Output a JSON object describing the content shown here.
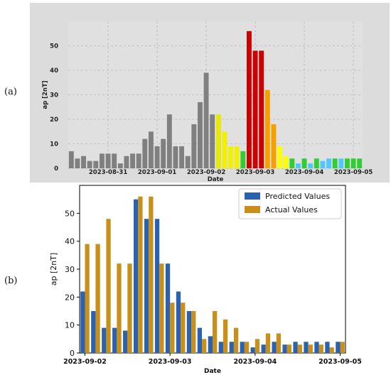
{
  "figure": {
    "panel_a_label": "(a)",
    "panel_b_label": "(b)"
  },
  "chart_data": [
    {
      "type": "bar",
      "panel": "(a)",
      "xlabel": "Date",
      "ylabel": "ap [2nT]",
      "ylim": [
        0,
        60
      ],
      "yticks": [
        0,
        10,
        20,
        30,
        40,
        50
      ],
      "grid": true,
      "x_tick_labels": [
        "2023-08-31",
        "2023-09-01",
        "2023-09-02",
        "2023-09-03",
        "2023-09-04",
        "2023-09-05"
      ],
      "x_tick_bar_index": [
        6,
        14,
        22,
        30,
        38,
        46
      ],
      "values": [
        7,
        4,
        5,
        3,
        3,
        6,
        6,
        6,
        2,
        5,
        6,
        6,
        12,
        15,
        9,
        12,
        22,
        9,
        9,
        5,
        18,
        27,
        39,
        22,
        22,
        15,
        9,
        9,
        7,
        56,
        48,
        48,
        32,
        18,
        9,
        5,
        4,
        2,
        4,
        2,
        4,
        3,
        4,
        4,
        4,
        4,
        4,
        4
      ],
      "colors": [
        "#808080",
        "#808080",
        "#808080",
        "#808080",
        "#808080",
        "#808080",
        "#808080",
        "#808080",
        "#808080",
        "#808080",
        "#808080",
        "#808080",
        "#808080",
        "#808080",
        "#808080",
        "#808080",
        "#808080",
        "#808080",
        "#808080",
        "#808080",
        "#808080",
        "#808080",
        "#808080",
        "#808080",
        "#e8e800",
        "#f0f000",
        "#f0f000",
        "#f0f000",
        "#32cd32",
        "#cc0000",
        "#cc0000",
        "#cc0000",
        "#f5a000",
        "#f5a000",
        "#ffff00",
        "#ffff00",
        "#32cd32",
        "#50c8ff",
        "#32cd32",
        "#50c8ff",
        "#32cd32",
        "#50c8ff",
        "#50c8ff",
        "#32cd32",
        "#50c8ff",
        "#32cd32",
        "#32cd32",
        "#32cd32"
      ]
    },
    {
      "type": "bar",
      "panel": "(b)",
      "xlabel": "Date",
      "ylabel": "ap [2nT]",
      "ylim": [
        0,
        60
      ],
      "yticks": [
        0,
        10,
        20,
        30,
        40,
        50
      ],
      "grid": false,
      "legend_position": "top-right",
      "x_tick_labels": [
        "2023-09-02",
        "2023-09-03",
        "2023-09-04",
        "2023-09-05"
      ],
      "x_tick_category_index": [
        0,
        8,
        16,
        24
      ],
      "categories_count": 25,
      "series": [
        {
          "name": "Predicted Values",
          "color": "#2a62b0",
          "values": [
            22,
            15,
            9,
            9,
            8,
            55,
            48,
            48,
            32,
            22,
            15,
            9,
            6,
            4,
            4,
            4,
            2,
            3,
            4,
            3,
            4,
            4,
            4,
            4,
            4
          ]
        },
        {
          "name": "Actual Values",
          "color": "#c8901a",
          "values": [
            39,
            39,
            48,
            32,
            32,
            56,
            56,
            32,
            18,
            18,
            15,
            5,
            15,
            12,
            9,
            4,
            5,
            7,
            7,
            3,
            3,
            3,
            3,
            2,
            4
          ]
        }
      ]
    }
  ]
}
